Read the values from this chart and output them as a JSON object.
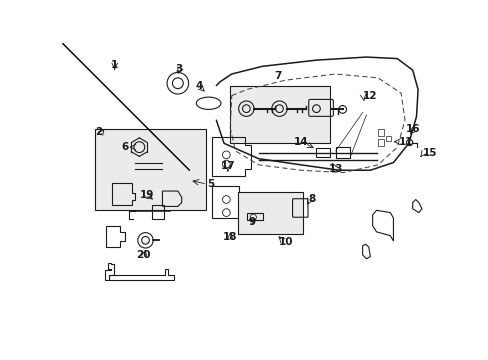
{
  "bg_color": "#ffffff",
  "line_color": "#1a1a1a",
  "box_fill": "#e8e8e8",
  "label_fontsize": 7.5,
  "lw": 0.8
}
